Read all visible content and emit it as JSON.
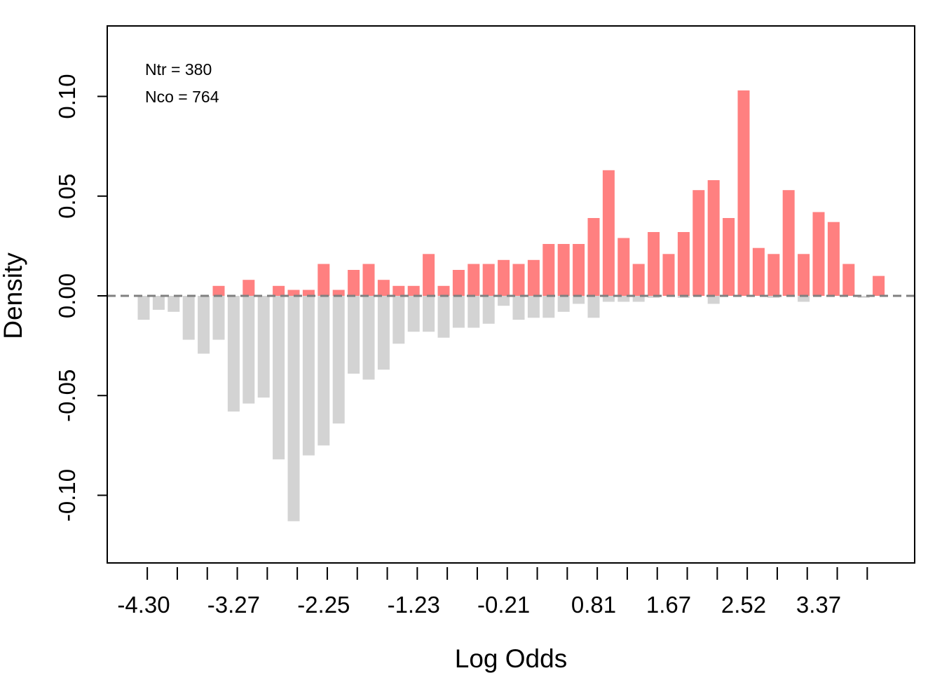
{
  "chart_data": {
    "type": "bar",
    "xlabel": "Log Odds",
    "ylabel": "Density",
    "ylim": [
      -0.13,
      0.135
    ],
    "y_ticks": [
      "-0.10",
      "-0.05",
      "0.00",
      "0.05",
      "0.10"
    ],
    "y_tick_values": [
      -0.1,
      -0.05,
      0.0,
      0.05,
      0.1
    ],
    "x_tick_labels": [
      "-4.30",
      "-3.27",
      "-2.25",
      "-1.23",
      "-0.21",
      "0.81",
      "1.67",
      "2.52",
      "3.37"
    ],
    "x_tick_label_bins": [
      0,
      6,
      12,
      18,
      24,
      30,
      35,
      40,
      45
    ],
    "annotations": [
      "Ntr =  380",
      "Nco =  764"
    ],
    "reference_line": 0.0,
    "colors": {
      "treated": "#ff8080",
      "control": "#d3d3d3",
      "reference": "#808080"
    },
    "series": [
      {
        "name": "Ntr",
        "values": [
          0,
          0,
          0,
          0,
          0,
          0.005,
          0,
          0.008,
          0,
          0.005,
          0.003,
          0.003,
          0.016,
          0.003,
          0.013,
          0.016,
          0.008,
          0.005,
          0.005,
          0.021,
          0.005,
          0.013,
          0.016,
          0.016,
          0.018,
          0.016,
          0.018,
          0.026,
          0.026,
          0.026,
          0.039,
          0.063,
          0.029,
          0.016,
          0.032,
          0.021,
          0.032,
          0.053,
          0.058,
          0.039,
          0.103,
          0.024,
          0.021,
          0.053,
          0.021,
          0.042,
          0.037,
          0.016,
          0,
          0.01
        ]
      },
      {
        "name": "Nco",
        "values": [
          -0.012,
          -0.007,
          -0.008,
          -0.022,
          -0.029,
          -0.022,
          -0.058,
          -0.054,
          -0.051,
          -0.082,
          -0.113,
          -0.08,
          -0.075,
          -0.064,
          -0.039,
          -0.042,
          -0.037,
          -0.024,
          -0.018,
          -0.018,
          -0.021,
          -0.016,
          -0.016,
          -0.014,
          -0.005,
          -0.012,
          -0.011,
          -0.011,
          -0.008,
          -0.004,
          -0.011,
          -0.003,
          -0.003,
          -0.003,
          -0.001,
          0,
          -0.001,
          0,
          -0.004,
          0,
          0,
          0,
          -0.001,
          0,
          -0.003,
          0,
          0,
          0,
          -0.001,
          0
        ]
      }
    ]
  }
}
